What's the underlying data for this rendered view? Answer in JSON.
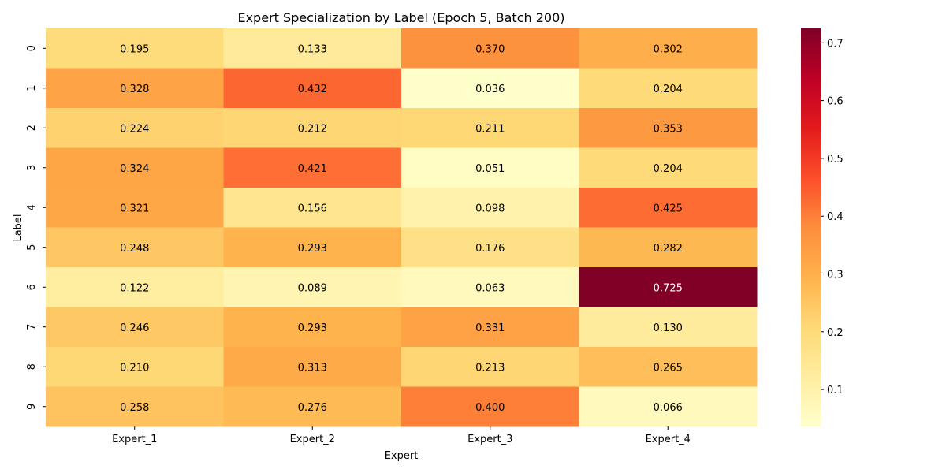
{
  "chart_data": {
    "type": "heatmap",
    "title": "Expert Specialization by Label (Epoch 5, Batch 200)",
    "xlabel": "Expert",
    "ylabel": "Label",
    "x_categories": [
      "Expert_1",
      "Expert_2",
      "Expert_3",
      "Expert_4"
    ],
    "y_categories": [
      "0",
      "1",
      "2",
      "3",
      "4",
      "5",
      "6",
      "7",
      "8",
      "9"
    ],
    "values": [
      [
        0.195,
        0.133,
        0.37,
        0.302
      ],
      [
        0.328,
        0.432,
        0.036,
        0.204
      ],
      [
        0.224,
        0.212,
        0.211,
        0.353
      ],
      [
        0.324,
        0.421,
        0.051,
        0.204
      ],
      [
        0.321,
        0.156,
        0.098,
        0.425
      ],
      [
        0.248,
        0.293,
        0.176,
        0.282
      ],
      [
        0.122,
        0.089,
        0.063,
        0.725
      ],
      [
        0.246,
        0.293,
        0.331,
        0.13
      ],
      [
        0.21,
        0.313,
        0.213,
        0.265
      ],
      [
        0.258,
        0.276,
        0.4,
        0.066
      ]
    ],
    "colormap": "YlOrRd",
    "colormap_stops": [
      "#ffffcc",
      "#ffeda0",
      "#fed976",
      "#feb24c",
      "#fd8d3c",
      "#fc4e2a",
      "#e31a1c",
      "#bd0026",
      "#800026"
    ],
    "color_range": [
      0.036,
      0.725
    ],
    "colorbar_ticks": [
      "0.1",
      "0.2",
      "0.3",
      "0.4",
      "0.5",
      "0.6",
      "0.7"
    ],
    "annotation_format": "3 decimals"
  }
}
